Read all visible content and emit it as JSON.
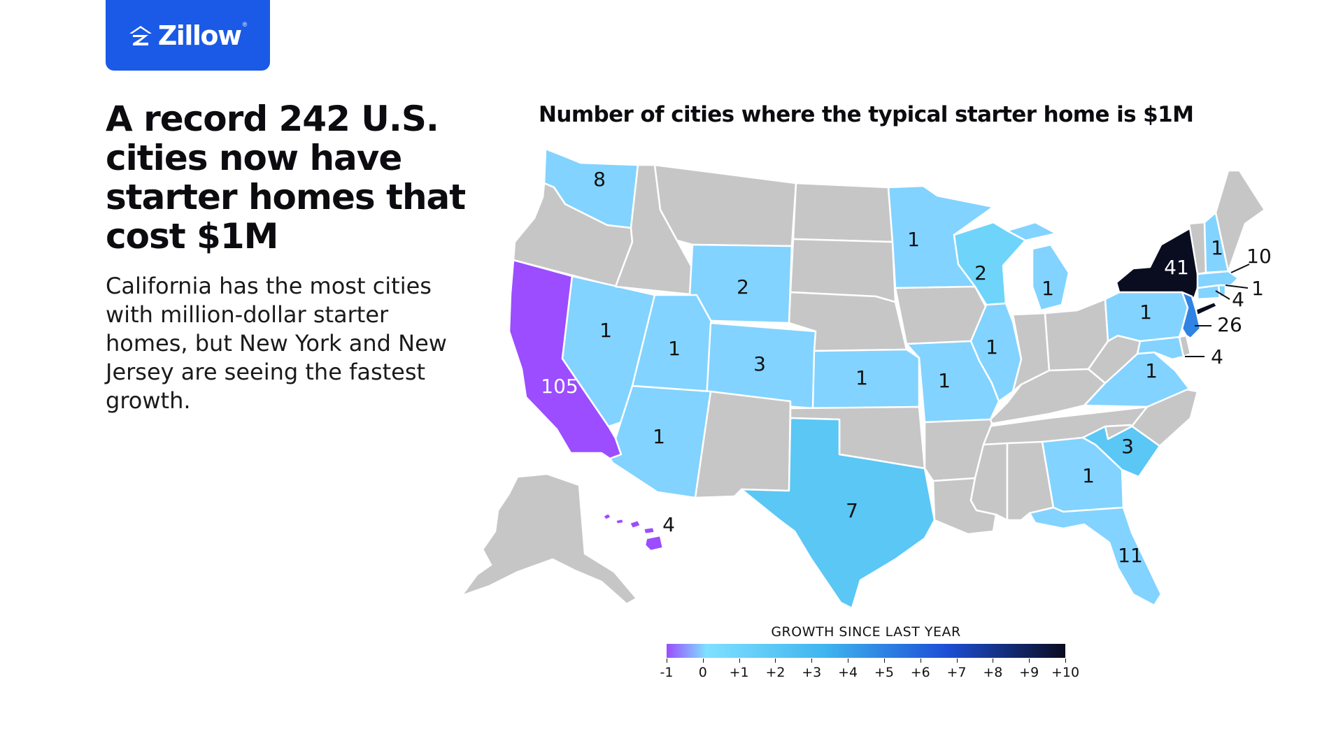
{
  "brand": {
    "name": "Zillow",
    "registered_mark": "®",
    "logo_color": "#1a5ae6"
  },
  "headline": "A record 242 U.S. cities now have starter homes that cost $1M",
  "subtext": "California has the most cities with million-dollar starter homes, but New York and New Jersey are seeing the fastest growth.",
  "map": {
    "title": "Number of cities where the typical starter home is $1M",
    "no_data_color": "#c6c6c6",
    "states": [
      {
        "id": "CA",
        "value": "105",
        "growth": -1
      },
      {
        "id": "NY",
        "value": "41",
        "growth": 10
      },
      {
        "id": "NJ",
        "value": "26",
        "growth": 5
      },
      {
        "id": "FL",
        "value": "11",
        "growth": 0
      },
      {
        "id": "MA",
        "value": "10",
        "growth": 0
      },
      {
        "id": "WA",
        "value": "8",
        "growth": 0
      },
      {
        "id": "TX",
        "value": "7",
        "growth": 2
      },
      {
        "id": "HI",
        "value": "4",
        "growth": -1
      },
      {
        "id": "CT",
        "value": "4",
        "growth": 0
      },
      {
        "id": "MD",
        "value": "4",
        "growth": 0
      },
      {
        "id": "CO",
        "value": "3",
        "growth": 0
      },
      {
        "id": "SC",
        "value": "3",
        "growth": 2
      },
      {
        "id": "WY",
        "value": "2",
        "growth": 0
      },
      {
        "id": "WI",
        "value": "2",
        "growth": 1
      },
      {
        "id": "NV",
        "value": "1",
        "growth": 0
      },
      {
        "id": "UT",
        "value": "1",
        "growth": 0
      },
      {
        "id": "AZ",
        "value": "1",
        "growth": 0
      },
      {
        "id": "KS",
        "value": "1",
        "growth": 0
      },
      {
        "id": "MN",
        "value": "1",
        "growth": 0
      },
      {
        "id": "MO",
        "value": "1",
        "growth": 0
      },
      {
        "id": "IL",
        "value": "1",
        "growth": 0
      },
      {
        "id": "MI",
        "value": "1",
        "growth": 0
      },
      {
        "id": "PA",
        "value": "1",
        "growth": 0
      },
      {
        "id": "VA",
        "value": "1",
        "growth": 0
      },
      {
        "id": "GA",
        "value": "1",
        "growth": 0
      },
      {
        "id": "NH",
        "value": "1",
        "growth": 0
      },
      {
        "id": "RI",
        "value": "1",
        "growth": 0
      }
    ]
  },
  "legend": {
    "title": "GROWTH SINCE LAST YEAR",
    "min": -1,
    "max": 10,
    "ticks": [
      "-1",
      "0",
      "+1",
      "+2",
      "+3",
      "+4",
      "+5",
      "+6",
      "+7",
      "+8",
      "+9",
      "+10"
    ],
    "color_stops": [
      "#9b4dff",
      "#7fe0ff",
      "#3fb4ee",
      "#1d4fd6",
      "#0a0c20"
    ]
  }
}
